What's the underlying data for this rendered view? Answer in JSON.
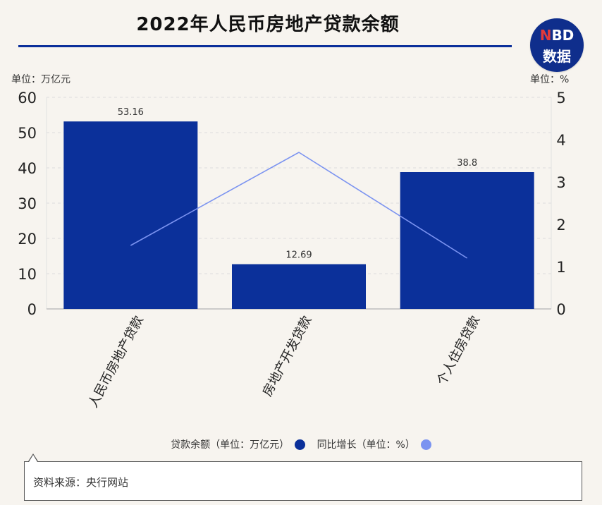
{
  "header": {
    "title": "2022年人民币房地产贷款余额",
    "logo_line1_n": "N",
    "logo_line1_rest": "BD",
    "logo_line2": "数据"
  },
  "units": {
    "left": "单位：万亿元",
    "right": "单位：%"
  },
  "legend": {
    "series1_label": "贷款余额（单位：万亿元）",
    "series2_label": "同比增长（单位：%）"
  },
  "source": {
    "text": "资料来源：央行网站"
  },
  "colors": {
    "bar": "#0b309a",
    "line": "#7b93f0",
    "background": "#f7f4ef"
  },
  "chart_data": {
    "type": "bar",
    "categories": [
      "人民币房地产贷款",
      "房地产开发贷款",
      "个人住房贷款"
    ],
    "series": [
      {
        "name": "贷款余额（单位：万亿元）",
        "type": "bar",
        "axis": "left",
        "values": [
          53.16,
          12.69,
          38.8
        ]
      },
      {
        "name": "同比增长（单位：%）",
        "type": "line",
        "axis": "right",
        "values": [
          1.5,
          3.7,
          1.2
        ]
      }
    ],
    "data_labels": [
      "53.16",
      "12.69",
      "38.8"
    ],
    "ylim_left": [
      0,
      60
    ],
    "ylim_right": [
      0,
      5
    ],
    "yticks_left": [
      "0",
      "10",
      "20",
      "30",
      "40",
      "50",
      "60"
    ],
    "yticks_right": [
      "0",
      "1",
      "2",
      "3",
      "4",
      "5"
    ],
    "grid": true,
    "legend_position": "bottom"
  }
}
